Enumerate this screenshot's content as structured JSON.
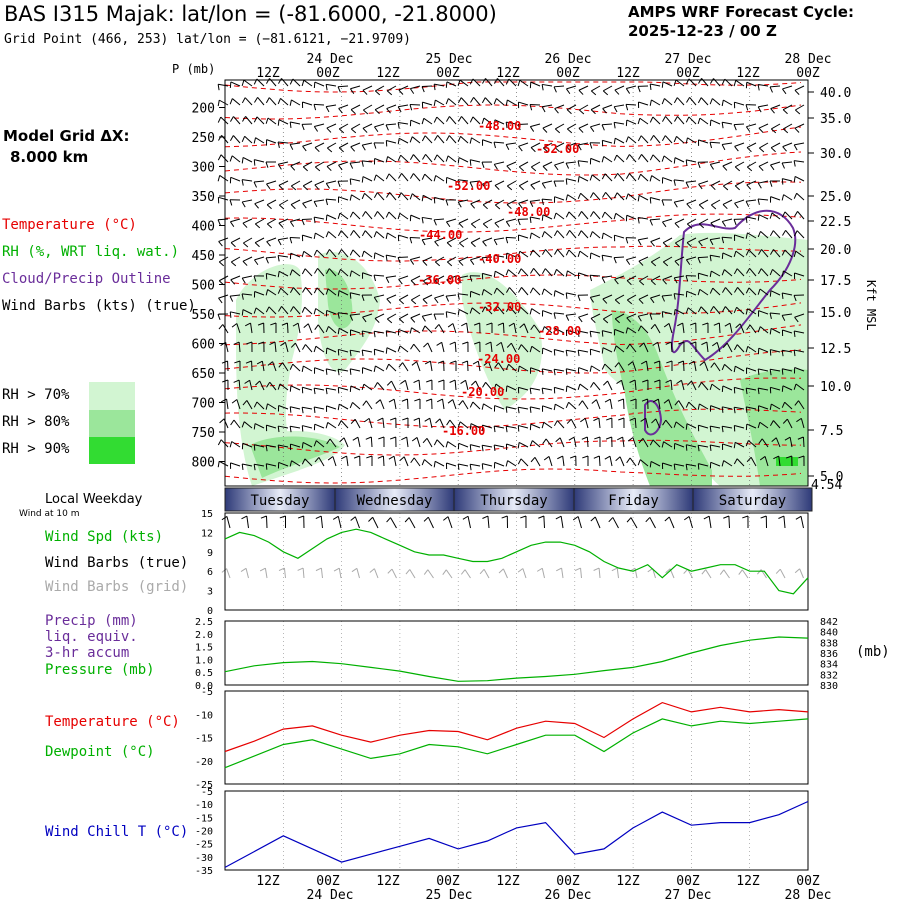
{
  "header": {
    "title": "BAS I315 Majak:  lat/lon = (-81.6000, -21.8000)",
    "subtitle": "Grid Point (466, 253) lat/lon = (−81.6121, −21.9709)",
    "cycle_line1": "AMPS WRF Forecast Cycle:",
    "cycle_line2": "2025-12-23 / 00  Z"
  },
  "left_panel": {
    "grid_label": "Model Grid ΔX:",
    "grid_value": "8.000 km",
    "legend_temperature": "Temperature (°C)",
    "legend_rh": "RH (%, WRT liq. wat.)",
    "legend_cloud": "Cloud/Precip Outline",
    "legend_wind": "Wind Barbs (kts) (true)",
    "rh_70": "RH > 70%",
    "rh_80": "RH > 80%",
    "rh_90": "RH > 90%"
  },
  "colors": {
    "temperature": "#e60000",
    "rh": "#00b000",
    "cloud": "#6a2d9a",
    "wind_chill": "#0000c0",
    "rh70": "#d2f5d2",
    "rh80": "#9be69b",
    "rh90": "#32dc32"
  },
  "time_axis": {
    "pressure_label": "P (mb)",
    "hour_ticks": [
      "12Z",
      "00Z",
      "12Z",
      "00Z",
      "12Z",
      "00Z",
      "12Z",
      "00Z",
      "12Z",
      "00Z"
    ],
    "date_labels": [
      "24 Dec",
      "25 Dec",
      "26 Dec",
      "27 Dec",
      "28 Dec"
    ]
  },
  "weekday_bar": {
    "title": "Local Weekday",
    "days": [
      "Tuesday",
      "Wednesday",
      "Thursday",
      "Friday",
      "Saturday"
    ]
  },
  "sounding": {
    "pressure_ticks": [
      200,
      250,
      300,
      350,
      400,
      450,
      500,
      550,
      600,
      650,
      700,
      750,
      800
    ],
    "height_ticks": [
      "40.0",
      "35.0",
      "30.0",
      "25.0",
      "22.5",
      "20.0",
      "17.5",
      "15.0",
      "12.5",
      "10.0",
      "7.5",
      "5.0"
    ],
    "surface_height": "4.54",
    "height_unit": "Kft MSL",
    "isotherm_labels": [
      "-48.00",
      "-52.00",
      "-52.00",
      "-48.00",
      "-44.00",
      "-40.00",
      "-36.00",
      "-32.00",
      "-28.00",
      "-24.00",
      "-20.00",
      "-16.00"
    ]
  },
  "wind_panel": {
    "sub_label": "Wind at 10 m",
    "speed_label": "Wind Spd (kts)",
    "barbs_true_label": "Wind Barbs (true)",
    "barbs_grid_label": "Wind Barbs (grid)",
    "y_ticks": [
      0,
      3,
      6,
      9,
      12,
      15
    ]
  },
  "precip_panel": {
    "label1": "Precip (mm)",
    "label2": "liq. equiv.",
    "label3": "3-hr accum",
    "label4": "Pressure (mb)",
    "unit_right": "(mb)",
    "left_ticks": [
      "0.0",
      "0.5",
      "1.0",
      "1.5",
      "2.0",
      "2.5"
    ],
    "right_ticks": [
      "830",
      "832",
      "834",
      "836",
      "838",
      "840",
      "842"
    ]
  },
  "temp_panel": {
    "temp_label": "Temperature (°C)",
    "dew_label": "Dewpoint (°C)",
    "y_ticks": [
      -25,
      -20,
      -15,
      -10,
      -5
    ]
  },
  "chill_panel": {
    "label": "Wind Chill T (°C)",
    "y_ticks": [
      -35,
      -30,
      -25,
      -20,
      -15,
      -10,
      -5
    ]
  },
  "chart_data": [
    {
      "type": "line",
      "title": "Wind Spd (kts)",
      "x_hours": [
        0,
        3,
        6,
        9,
        12,
        15,
        18,
        21,
        24,
        27,
        30,
        33,
        36,
        39,
        42,
        45,
        48,
        51,
        54,
        57,
        60,
        63,
        66,
        69,
        72,
        75,
        78,
        81,
        84,
        87,
        90,
        93,
        96,
        99,
        102,
        105,
        108,
        111,
        114,
        117,
        120
      ],
      "series": [
        {
          "name": "Wind Spd (kts)",
          "values": [
            11,
            12,
            11.5,
            10.5,
            9,
            8,
            9.5,
            11,
            12,
            12.5,
            12,
            11,
            10,
            9,
            8.5,
            8.5,
            8,
            7.5,
            7.5,
            8,
            9,
            10,
            10.5,
            10.5,
            10,
            9,
            7.5,
            6.5,
            6,
            7,
            5,
            7,
            6,
            6.5,
            7,
            7,
            6,
            6,
            3,
            2.5,
            5
          ]
        }
      ],
      "ylim": [
        0,
        15
      ]
    },
    {
      "type": "line",
      "title": "Pressure (mb)",
      "x_hours": [
        0,
        6,
        12,
        18,
        24,
        30,
        36,
        42,
        48,
        54,
        60,
        66,
        72,
        78,
        84,
        90,
        96,
        102,
        108,
        114,
        120
      ],
      "series": [
        {
          "name": "Pressure (mb)",
          "values": [
            832.5,
            833.6,
            834.2,
            834.4,
            834,
            833.3,
            832.6,
            831.6,
            830.7,
            830.8,
            831.3,
            831.6,
            832,
            832.7,
            833.3,
            834.4,
            836,
            837.4,
            838.4,
            839,
            838.8
          ]
        }
      ],
      "ylim": [
        830,
        842
      ]
    },
    {
      "type": "line",
      "title": "Temperature / Dewpoint (°C)",
      "x_hours": [
        0,
        6,
        12,
        18,
        24,
        30,
        36,
        42,
        48,
        54,
        60,
        66,
        72,
        78,
        84,
        90,
        96,
        102,
        108,
        114,
        120
      ],
      "series": [
        {
          "name": "Temperature (°C)",
          "values": [
            -18,
            -15.8,
            -13.2,
            -12.5,
            -14.5,
            -16,
            -14.5,
            -13.5,
            -13.7,
            -15.5,
            -13,
            -11.5,
            -12,
            -15,
            -11,
            -7.5,
            -9.5,
            -8.5,
            -9.5,
            -9,
            -9.5
          ]
        },
        {
          "name": "Dewpoint (°C)",
          "values": [
            -21.5,
            -19,
            -16.5,
            -15.5,
            -17.5,
            -19.5,
            -18.5,
            -16.5,
            -17,
            -18.5,
            -16.5,
            -14.5,
            -14.5,
            -18,
            -14,
            -11,
            -12.5,
            -11.5,
            -12,
            -11.5,
            -11
          ]
        }
      ],
      "ylim": [
        -25,
        -5
      ]
    },
    {
      "type": "line",
      "title": "Wind Chill T (°C)",
      "x_hours": [
        0,
        6,
        12,
        18,
        24,
        30,
        36,
        42,
        48,
        54,
        60,
        66,
        72,
        78,
        84,
        90,
        96,
        102,
        108,
        114,
        120
      ],
      "series": [
        {
          "name": "Wind Chill T (°C)",
          "values": [
            -34,
            -28,
            -22,
            -27,
            -32,
            -29,
            -26,
            -23,
            -27,
            -24,
            -19,
            -17,
            -29,
            -27,
            -19,
            -13,
            -18,
            -17,
            -17,
            -14,
            -9
          ]
        }
      ],
      "ylim": [
        -35,
        -5
      ]
    }
  ]
}
